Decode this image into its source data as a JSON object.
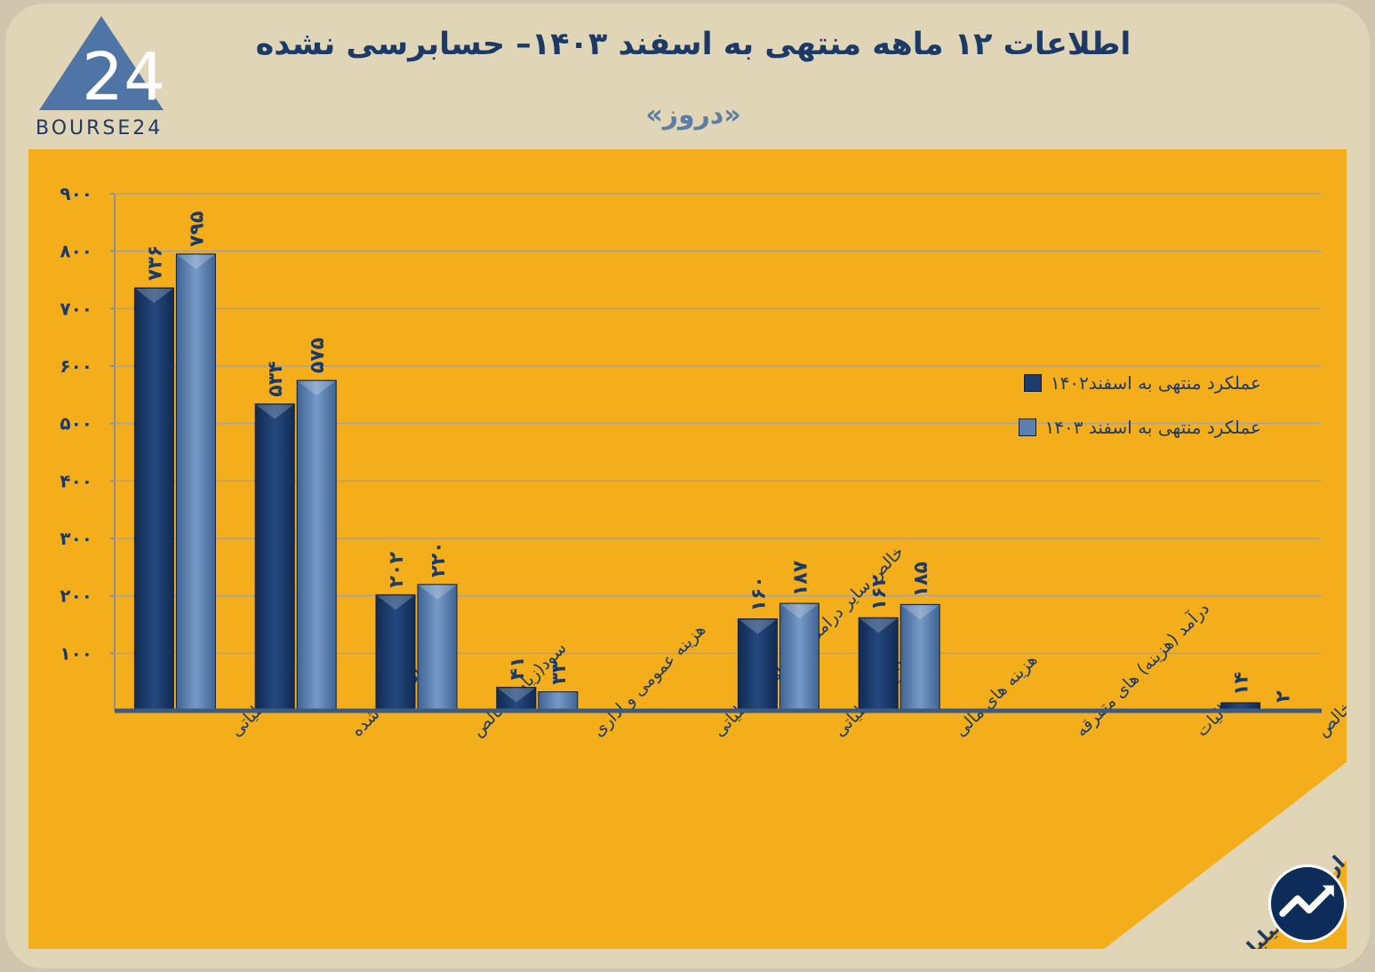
{
  "header": {
    "title": "اطلاعات ۱۲ ماهه منتهی به اسفند ۱۴۰۳– حسابرسی نشده",
    "subtitle": "«دروز»"
  },
  "logo": {
    "text": "BOURSE24",
    "mark": "24"
  },
  "note": "ارقام به میلیارد تومان",
  "colors": {
    "series1": "#1d3c6b",
    "series2": "#5b7fae",
    "panel": "#f4ae1b",
    "text": "#1b3a66"
  },
  "chart_data": {
    "type": "bar",
    "categories": [
      "درآمد عملیاتی",
      "بهای تمام شده",
      "سود(زیان)ناخالص",
      "هزینه عمومی و اداری",
      "خالص سایر درامد(هزینه)های عملیاتی",
      "سود(زیان)عملیاتی",
      "هزینه های مالی",
      "درآمد (هزینه) های متفرقه",
      "مالیات",
      "سود(زیان) خالص"
    ],
    "series": [
      {
        "name": "عملکرد منتهی به اسفند۱۴۰۲",
        "values": [
          736,
          534,
          202,
          41,
          0,
          160,
          162,
          0,
          0,
          14
        ],
        "labels": [
          "۷۳۶",
          "۵۳۴",
          "۲۰۲",
          "۴۱",
          "",
          "۱۶۰",
          "۱۶۲",
          "",
          "",
          "۱۴"
        ]
      },
      {
        "name": "عملکرد منتهی به اسفند ۱۴۰۳",
        "values": [
          795,
          575,
          220,
          33,
          0,
          187,
          185,
          0,
          0,
          2
        ],
        "labels": [
          "۷۹۵",
          "۵۷۵",
          "۲۲۰",
          "۳۳",
          "",
          "۱۸۷",
          "۱۸۵",
          "",
          "",
          "۲"
        ]
      }
    ],
    "yticks": [
      {
        "value": 100,
        "label": "۱۰۰"
      },
      {
        "value": 200,
        "label": "۲۰۰"
      },
      {
        "value": 300,
        "label": "۳۰۰"
      },
      {
        "value": 400,
        "label": "۴۰۰"
      },
      {
        "value": 500,
        "label": "۵۰۰"
      },
      {
        "value": 600,
        "label": "۶۰۰"
      },
      {
        "value": 700,
        "label": "۷۰۰"
      },
      {
        "value": 800,
        "label": "۸۰۰"
      },
      {
        "value": 900,
        "label": "۹۰۰"
      }
    ],
    "ylim": [
      0,
      900
    ],
    "grid": true,
    "legend": "top-right"
  }
}
